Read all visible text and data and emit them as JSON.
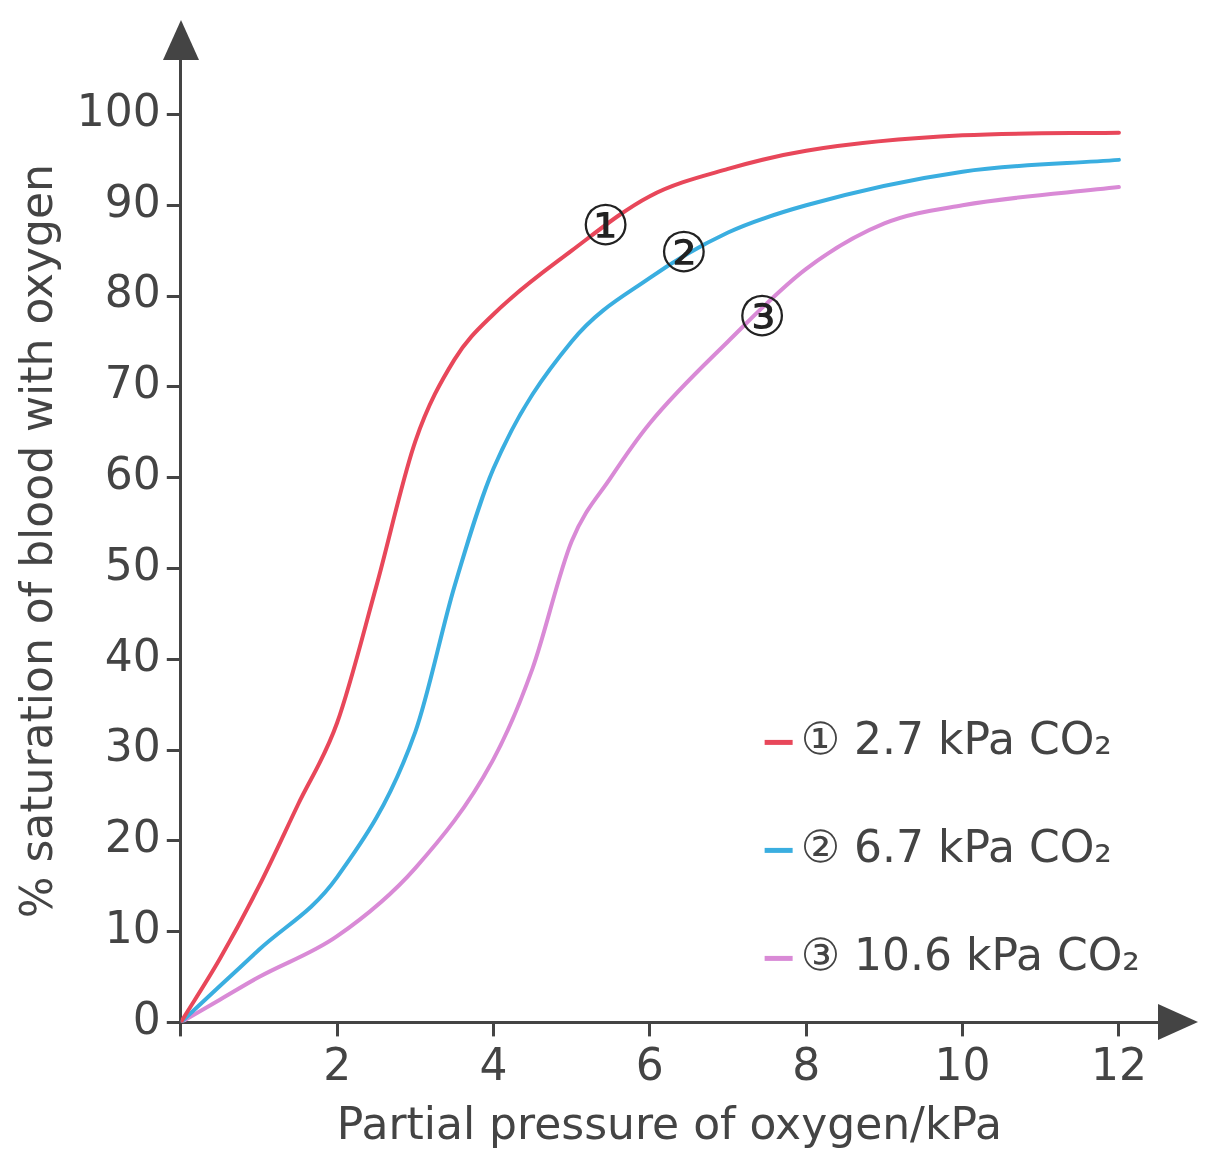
{
  "chart_data": {
    "type": "line",
    "xlabel": "Partial pressure of oxygen/kPa",
    "ylabel": "% saturation of blood with oxygen",
    "xlim": [
      0,
      12.5
    ],
    "ylim": [
      0,
      106
    ],
    "xticks": [
      {
        "value": 0,
        "label": null
      },
      2,
      4,
      6,
      8,
      10,
      12
    ],
    "yticks": [
      0,
      10,
      20,
      30,
      40,
      50,
      60,
      70,
      80,
      90,
      100
    ],
    "grid": false,
    "legend": "bottom right",
    "marker": "none",
    "line_style": "solid",
    "series": [
      {
        "name": "① 2.7 kPa CO₂",
        "color": "#e8475a",
        "x": [
          0,
          0.5,
          1,
          1.5,
          2,
          2.5,
          3,
          3.5,
          4,
          5,
          6,
          7,
          8,
          10,
          12
        ],
        "values": [
          0,
          7,
          15,
          24,
          33,
          48,
          64,
          73,
          78,
          85,
          91,
          94,
          96,
          97.7,
          98
        ]
      },
      {
        "name": "② 6.7 kPa CO₂",
        "color": "#3aaee0",
        "x": [
          0,
          0.5,
          1,
          2,
          3,
          3.5,
          4,
          5,
          6,
          7,
          8,
          10,
          12
        ],
        "values": [
          0,
          4,
          8,
          16,
          32,
          48,
          61,
          75,
          82,
          87,
          90,
          93.7,
          95
        ]
      },
      {
        "name": "③ 10.6 kPa CO₂",
        "color": "#d98ad6",
        "x": [
          0,
          0.5,
          1,
          2,
          3,
          4,
          4.5,
          5,
          5.5,
          6,
          7,
          8,
          9,
          10,
          12
        ],
        "values": [
          0,
          2.5,
          5,
          9.5,
          17,
          29,
          39,
          53,
          60,
          66,
          75,
          83,
          88,
          90,
          92
        ]
      }
    ],
    "annotations": [
      {
        "text": "①",
        "x": 5,
        "y": 85
      },
      {
        "text": "②",
        "x": 6,
        "y": 82
      },
      {
        "text": "③",
        "x": 7,
        "y": 75
      }
    ]
  }
}
